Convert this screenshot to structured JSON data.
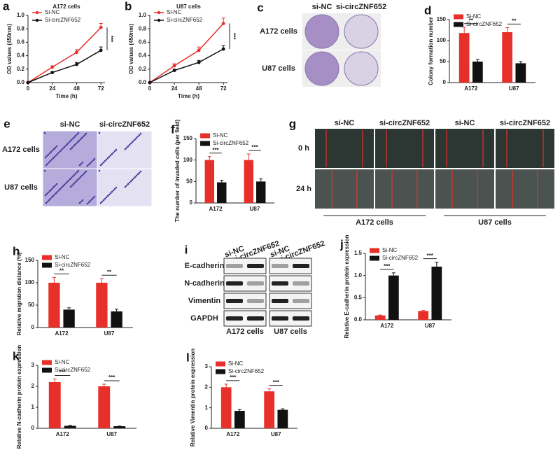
{
  "chart_data": [
    {
      "type": "line",
      "label": "a",
      "title": "A172 cells",
      "xlabel": "Time (h)",
      "ylabel": "OD values (450nm)",
      "x": [
        0,
        24,
        48,
        72
      ],
      "xlim": [
        0,
        76
      ],
      "xticks": [
        0,
        24,
        48,
        72
      ],
      "ylim": [
        0,
        1.0
      ],
      "yticks": [
        {
          "value": 0,
          "label": "0.0"
        },
        0.2,
        0.4,
        0.6,
        0.8,
        {
          "value": 1,
          "label": "1.0"
        }
      ],
      "legend": "upper left",
      "annotation": "***",
      "series": [
        {
          "name": "Si-NC",
          "color": "#e8302a",
          "values": [
            0,
            0.23,
            0.45,
            0.82
          ],
          "errors": [
            0,
            0.02,
            0.04,
            0.06
          ]
        },
        {
          "name": "Si-circZNF652",
          "color": "#111111",
          "values": [
            0,
            0.15,
            0.27,
            0.48
          ],
          "errors": [
            0,
            0.01,
            0.03,
            0.05
          ]
        }
      ]
    },
    {
      "type": "line",
      "label": "b",
      "title": "U87 cells",
      "xlabel": "Time (h)",
      "ylabel": "OD values (450nm)",
      "x": [
        0,
        24,
        48,
        72
      ],
      "xlim": [
        0,
        76
      ],
      "xticks": [
        0,
        24,
        48,
        72
      ],
      "ylim": [
        0,
        1.0
      ],
      "yticks": [
        {
          "value": 0,
          "label": "0.0"
        },
        0.2,
        0.4,
        0.6,
        0.8,
        {
          "value": 1,
          "label": "1.0"
        }
      ],
      "legend": "upper left",
      "annotation": "***",
      "series": [
        {
          "name": "Si-NC",
          "color": "#e8302a",
          "values": [
            0,
            0.25,
            0.48,
            0.88
          ],
          "errors": [
            0,
            0.03,
            0.05,
            0.08
          ]
        },
        {
          "name": "Si-circZNF652",
          "color": "#111111",
          "values": [
            0,
            0.18,
            0.3,
            0.5
          ],
          "errors": [
            0,
            0.02,
            0.03,
            0.05
          ]
        }
      ]
    },
    {
      "type": "bar",
      "label": "d",
      "ylabel": "Colony formation number",
      "categories": [
        "A172",
        "U87"
      ],
      "ylim": [
        0,
        150
      ],
      "yticks": [
        0,
        50,
        100,
        150
      ],
      "legend": "upper left",
      "annotations": [
        "**",
        "**"
      ],
      "series": [
        {
          "name": "Si-NC",
          "color": "#e8302a",
          "values": [
            118,
            120
          ],
          "errors": [
            14,
            11
          ]
        },
        {
          "name": "Si-circZNF652",
          "color": "#111111",
          "values": [
            50,
            46
          ],
          "errors": [
            5,
            4
          ]
        }
      ]
    },
    {
      "type": "bar",
      "label": "f",
      "ylabel": "The number of invaded cells (per field)",
      "categories": [
        "A172",
        "U87"
      ],
      "ylim": [
        0,
        150
      ],
      "yticks": [
        0,
        50,
        100,
        150
      ],
      "legend": "upper left",
      "annotations": [
        "***",
        "***"
      ],
      "series": [
        {
          "name": "Si-NC",
          "color": "#e8302a",
          "values": [
            100,
            100
          ],
          "errors": [
            8,
            14
          ]
        },
        {
          "name": "Si-circZNF652",
          "color": "#111111",
          "values": [
            48,
            50
          ],
          "errors": [
            5,
            6
          ]
        }
      ]
    },
    {
      "type": "bar",
      "label": "h",
      "ylabel": "Relative migration distance (%)",
      "categories": [
        "A172",
        "U87"
      ],
      "ylim": [
        0,
        150
      ],
      "yticks": [
        0,
        50,
        100,
        150
      ],
      "legend": "upper left",
      "annotations": [
        "**",
        "**"
      ],
      "series": [
        {
          "name": "Si-NC",
          "color": "#e8302a",
          "values": [
            100,
            100
          ],
          "errors": [
            12,
            9
          ]
        },
        {
          "name": "Si-circZNF652",
          "color": "#111111",
          "values": [
            40,
            36
          ],
          "errors": [
            4,
            5
          ]
        }
      ]
    },
    {
      "type": "bar",
      "label": "j",
      "ylabel": "Relative E-cadherin protein expression",
      "categories": [
        "A172",
        "U87"
      ],
      "ylim": [
        0,
        1.5
      ],
      "yticks": [
        {
          "value": 0,
          "label": "0.0"
        },
        0.5,
        {
          "value": 1,
          "label": "1.0"
        },
        1.5
      ],
      "legend": "upper left",
      "annotations": [
        "***",
        "***"
      ],
      "series": [
        {
          "name": "Si-NC",
          "color": "#e8302a",
          "values": [
            0.1,
            0.2
          ],
          "errors": [
            0.01,
            0.01
          ]
        },
        {
          "name": "Si-circZNF652",
          "color": "#111111",
          "values": [
            1.0,
            1.2
          ],
          "errors": [
            0.06,
            0.1
          ]
        }
      ]
    },
    {
      "type": "bar",
      "label": "k",
      "ylabel": "Relative N-cadherin protein expression",
      "categories": [
        "A172",
        "U87"
      ],
      "ylim": [
        0,
        3
      ],
      "yticks": [
        0,
        1,
        2,
        3
      ],
      "legend": "upper left",
      "annotations": [
        "***",
        "***"
      ],
      "series": [
        {
          "name": "Si-NC",
          "color": "#e8302a",
          "values": [
            2.2,
            2.0
          ],
          "errors": [
            0.15,
            0.1
          ]
        },
        {
          "name": "Si-circZNF652",
          "color": "#111111",
          "values": [
            0.12,
            0.1
          ],
          "errors": [
            0.02,
            0.01
          ]
        }
      ]
    },
    {
      "type": "bar",
      "label": "l",
      "ylabel": "Relative Vimentin protein expression",
      "categories": [
        "A172",
        "U87"
      ],
      "ylim": [
        0,
        3
      ],
      "yticks": [
        0,
        1,
        2,
        3
      ],
      "legend": "upper left",
      "annotations": [
        "***",
        "***"
      ],
      "series": [
        {
          "name": "Si-NC",
          "color": "#e8302a",
          "values": [
            2.0,
            1.8
          ],
          "errors": [
            0.15,
            0.12
          ]
        },
        {
          "name": "Si-circZNF652",
          "color": "#111111",
          "values": [
            0.85,
            0.9
          ],
          "errors": [
            0.06,
            0.05
          ]
        }
      ]
    }
  ],
  "images": {
    "c": {
      "label": "c",
      "columns": [
        "si-NC",
        "si-circZNF652"
      ],
      "rows": [
        "A172 cells",
        "U87 cells"
      ]
    },
    "e": {
      "label": "e",
      "columns": [
        "si-NC",
        "si-circZNF652"
      ],
      "rows": [
        "A172 cells",
        "U87 cells"
      ]
    },
    "g": {
      "label": "g",
      "columns": [
        "si-NC",
        "si-circZNF652",
        "si-NC",
        "si-circZNF652"
      ],
      "rows": [
        "0 h",
        "24 h"
      ],
      "groups": [
        "A172 cells",
        "U87 cells"
      ]
    },
    "i": {
      "label": "i",
      "columns": [
        "si-NC",
        "si-circZNF652",
        "si-NC",
        "si-circZNF652"
      ],
      "rows": [
        "E-cadherin",
        "N-cadherin",
        "Vimentin",
        "GAPDH"
      ],
      "groups": [
        "A172 cells",
        "U87 cells"
      ]
    }
  }
}
